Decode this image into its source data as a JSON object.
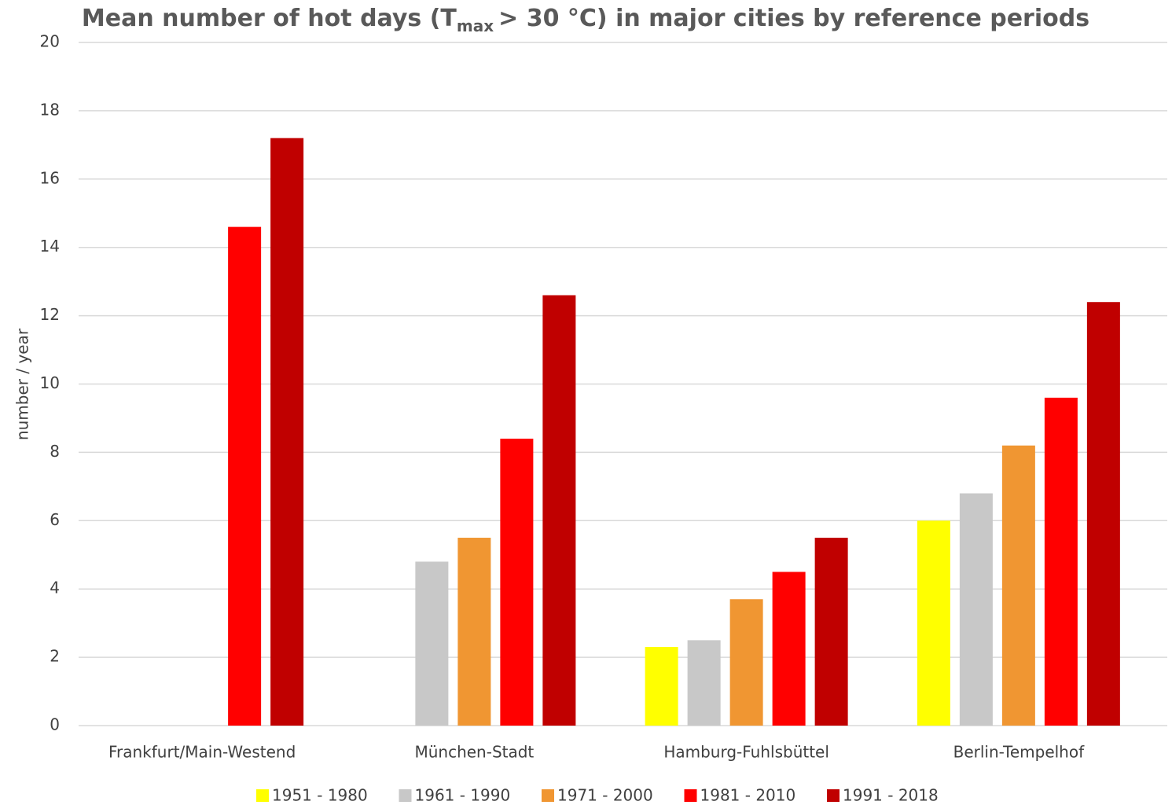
{
  "chart_data": {
    "type": "bar",
    "title": [
      "Mean number of hot days (T",
      "max",
      "> 30 °C) in major cities by reference periods"
    ],
    "y_label": "number / year",
    "categories": [
      "Frankfurt/Main-Westend",
      "München-Stadt",
      "Hamburg-Fuhlsbüttel",
      "Berlin-Tempelhof"
    ],
    "series": [
      {
        "name": "1951 - 1980",
        "color": "#ffff00",
        "values": [
          null,
          null,
          2.3,
          6.0
        ]
      },
      {
        "name": "1961 - 1990",
        "color": "#c8c8c8",
        "values": [
          null,
          4.8,
          2.5,
          6.8
        ]
      },
      {
        "name": "1971 - 2000",
        "color": "#f09632",
        "values": [
          null,
          5.5,
          3.7,
          8.2
        ]
      },
      {
        "name": "1981 - 2010",
        "color": "#ff0000",
        "values": [
          14.6,
          8.4,
          4.5,
          9.6
        ]
      },
      {
        "name": "1991 - 2018",
        "color": "#c00000",
        "values": [
          17.2,
          12.6,
          5.5,
          12.4
        ]
      }
    ],
    "ylim": [
      0,
      20
    ],
    "yticks": [
      0,
      2,
      4,
      6,
      8,
      10,
      12,
      14,
      16,
      18,
      20
    ],
    "grid": true,
    "legend": "bottom"
  }
}
